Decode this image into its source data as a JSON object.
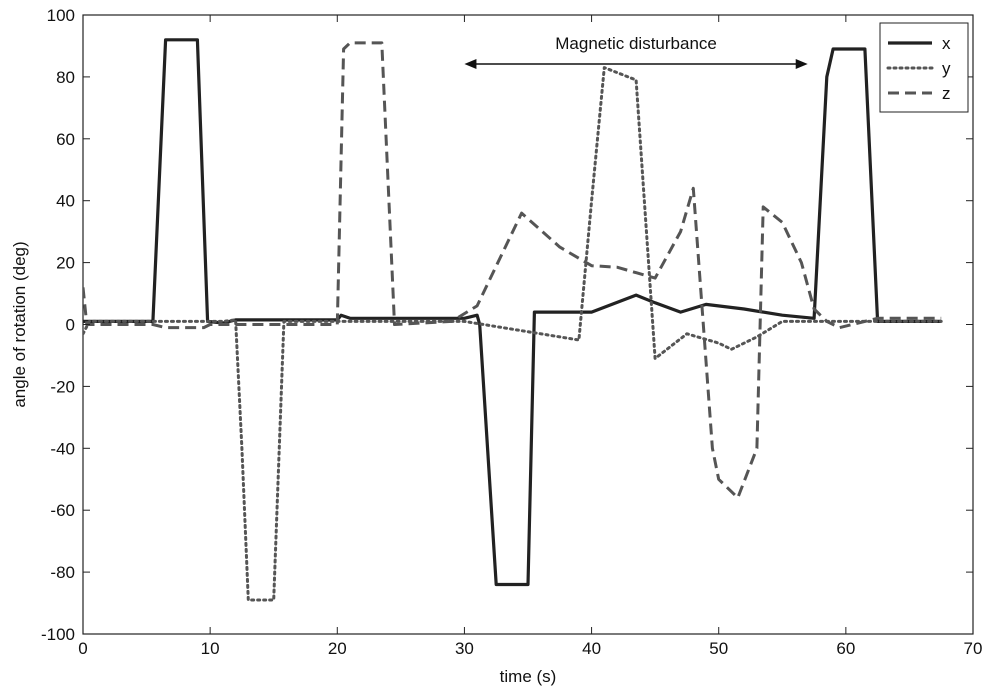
{
  "chart_data": {
    "type": "line",
    "xlabel": "time (s)",
    "ylabel": "angle of rotation (deg)",
    "xlim": [
      0,
      70
    ],
    "ylim": [
      -100,
      100
    ],
    "xticks": [
      0,
      10,
      20,
      30,
      40,
      50,
      60,
      70
    ],
    "yticks": [
      -100,
      -80,
      -60,
      -40,
      -20,
      0,
      20,
      40,
      60,
      80,
      100
    ],
    "grid": false,
    "legend_position": "top-right",
    "annotation": {
      "text": "Magnetic disturbance",
      "x_start": 30,
      "x_end": 57
    },
    "series": [
      {
        "name": "x",
        "style": "solid",
        "color": "#222222",
        "points": [
          [
            0,
            1
          ],
          [
            5.5,
            1
          ],
          [
            6.5,
            92
          ],
          [
            9,
            92
          ],
          [
            9.8,
            1
          ],
          [
            11,
            0.5
          ],
          [
            12,
            1.5
          ],
          [
            20,
            1.5
          ],
          [
            20.3,
            3
          ],
          [
            21,
            2
          ],
          [
            30,
            2
          ],
          [
            31,
            3
          ],
          [
            31.2,
            0
          ],
          [
            32.5,
            -84
          ],
          [
            35,
            -84
          ],
          [
            35.5,
            4
          ],
          [
            40,
            4
          ],
          [
            43.5,
            9.5
          ],
          [
            45,
            7
          ],
          [
            47,
            4
          ],
          [
            49,
            6.5
          ],
          [
            52,
            5
          ],
          [
            55,
            3
          ],
          [
            57.5,
            2
          ],
          [
            58.5,
            80
          ],
          [
            59,
            89
          ],
          [
            61.5,
            89
          ],
          [
            62.5,
            1
          ],
          [
            67.5,
            1
          ]
        ]
      },
      {
        "name": "y",
        "style": "dotted",
        "color": "#555555",
        "points": [
          [
            0,
            -3
          ],
          [
            0.5,
            1
          ],
          [
            11,
            1
          ],
          [
            12,
            1.5
          ],
          [
            12.5,
            -40
          ],
          [
            13,
            -89
          ],
          [
            15,
            -89
          ],
          [
            15.8,
            1
          ],
          [
            30,
            1
          ],
          [
            39,
            -5
          ],
          [
            40,
            40
          ],
          [
            41,
            83
          ],
          [
            43.5,
            79
          ],
          [
            45,
            -11
          ],
          [
            47.5,
            -3
          ],
          [
            50,
            -6
          ],
          [
            51,
            -8
          ],
          [
            53,
            -4
          ],
          [
            55,
            1
          ],
          [
            67.5,
            1
          ]
        ]
      },
      {
        "name": "z",
        "style": "dashed",
        "color": "#555555",
        "points": [
          [
            0,
            12
          ],
          [
            0.3,
            0
          ],
          [
            5.5,
            0
          ],
          [
            6.5,
            -1
          ],
          [
            9.5,
            -1
          ],
          [
            10,
            0
          ],
          [
            20,
            0
          ],
          [
            20.5,
            89
          ],
          [
            21,
            91
          ],
          [
            23.5,
            91
          ],
          [
            24.5,
            0
          ],
          [
            29,
            1
          ],
          [
            31,
            6
          ],
          [
            34.5,
            36
          ],
          [
            37.5,
            25
          ],
          [
            40,
            19
          ],
          [
            42,
            18.5
          ],
          [
            45,
            15
          ],
          [
            47,
            30
          ],
          [
            48,
            44
          ],
          [
            49.5,
            -40
          ],
          [
            50,
            -50
          ],
          [
            51.5,
            -56
          ],
          [
            53,
            -40
          ],
          [
            53.5,
            38
          ],
          [
            55,
            33
          ],
          [
            56.5,
            20
          ],
          [
            57.5,
            5
          ],
          [
            58.5,
            1
          ],
          [
            59.5,
            -1
          ],
          [
            62.5,
            2
          ],
          [
            67.5,
            2
          ]
        ]
      }
    ]
  }
}
